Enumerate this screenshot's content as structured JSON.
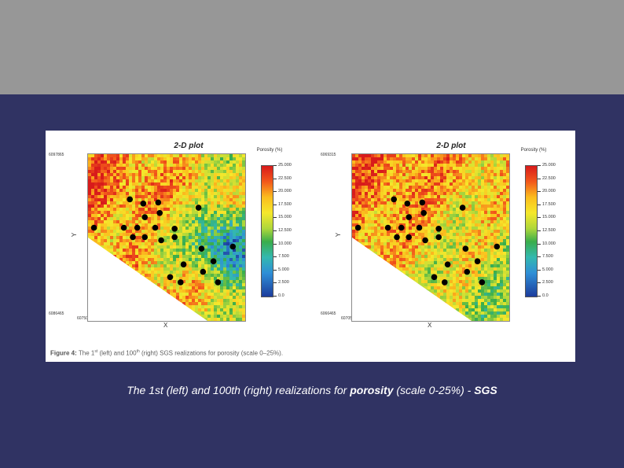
{
  "slide": {
    "caption_prefix": "The 1st (left) and 100th (right) realizations for ",
    "caption_bold_1": "porosity",
    "caption_mid": " (scale 0-25%) - ",
    "caption_bold_2": "SGS"
  },
  "figure": {
    "caption_label": "Figure 4:",
    "caption_t1": " The 1",
    "caption_sup1": "st",
    "caption_t2": " (left) and 100",
    "caption_sup2": "th",
    "caption_t3": " (right) SGS realizations for porosity (scale 0–25%)."
  },
  "colors": {
    "slide_background": "#303363",
    "top_band": "#979797",
    "well_marker": "#000000",
    "scale_high": "#d81b1b",
    "scale_mid": "#f5e82b",
    "scale_low": "#1c3c9c"
  },
  "chart_data": [
    {
      "type": "heatmap",
      "title": "2-D plot",
      "xlabel": "X",
      "ylabel": "Y",
      "corner_labels": {
        "y_max": "6097865",
        "y_min": "6086465",
        "x_min": "607505",
        "x_max": "6070545"
      },
      "legend_title": "Porosity (%)",
      "scale_min": 0,
      "scale_max": 25,
      "scale_ticks": [
        "25.000",
        "22.500",
        "20.000",
        "17.500",
        "15.000",
        "12.500",
        "10.000",
        "7.500",
        "5.000",
        "2.500",
        "0.0"
      ],
      "color_map": [
        "#d81b1b",
        "#f2571b",
        "#fbbd1e",
        "#f5e82b",
        "#aed73b",
        "#39ad4b",
        "#33b8b0",
        "#2f8fd6",
        "#1c3c9c"
      ],
      "low_zone": "east-center",
      "high_zone": "west",
      "wells": [
        {
          "x": 0.28,
          "y": 0.43
        },
        {
          "x": 0.37,
          "y": 0.47
        },
        {
          "x": 0.47,
          "y": 0.46
        },
        {
          "x": 0.38,
          "y": 0.6
        },
        {
          "x": 0.48,
          "y": 0.56
        },
        {
          "x": 0.04,
          "y": 0.7
        },
        {
          "x": 0.24,
          "y": 0.7
        },
        {
          "x": 0.33,
          "y": 0.7
        },
        {
          "x": 0.45,
          "y": 0.7
        },
        {
          "x": 0.58,
          "y": 0.71
        },
        {
          "x": 0.74,
          "y": 0.51
        },
        {
          "x": 0.3,
          "y": 0.79
        },
        {
          "x": 0.38,
          "y": 0.79
        },
        {
          "x": 0.49,
          "y": 0.82
        },
        {
          "x": 0.58,
          "y": 0.79
        },
        {
          "x": 0.76,
          "y": 0.9
        },
        {
          "x": 0.64,
          "y": 1.05
        },
        {
          "x": 0.97,
          "y": 0.88
        },
        {
          "x": 0.84,
          "y": 1.02
        },
        {
          "x": 0.77,
          "y": 1.12
        },
        {
          "x": 0.87,
          "y": 1.22
        },
        {
          "x": 0.55,
          "y": 1.17
        },
        {
          "x": 0.62,
          "y": 1.22
        }
      ]
    },
    {
      "type": "heatmap",
      "title": "2-D plot",
      "xlabel": "X",
      "ylabel": "Y",
      "corner_labels": {
        "y_max": "6069315",
        "y_min": "6066465",
        "x_min": "6070525",
        "x_max": "6345315"
      },
      "legend_title": "Porosity (%)",
      "scale_min": 0,
      "scale_max": 25,
      "scale_ticks": [
        "25.000",
        "22.500",
        "20.000",
        "17.500",
        "15.000",
        "12.500",
        "10.000",
        "7.500",
        "5.000",
        "2.500",
        "0.0"
      ],
      "color_map": [
        "#d81b1b",
        "#f2571b",
        "#fbbd1e",
        "#f5e82b",
        "#aed73b",
        "#39ad4b",
        "#33b8b0",
        "#2f8fd6",
        "#1c3c9c"
      ],
      "low_zone": "none",
      "high_zone": "north-west",
      "wells": [
        {
          "x": 0.28,
          "y": 0.43
        },
        {
          "x": 0.37,
          "y": 0.47
        },
        {
          "x": 0.47,
          "y": 0.46
        },
        {
          "x": 0.38,
          "y": 0.6
        },
        {
          "x": 0.48,
          "y": 0.56
        },
        {
          "x": 0.04,
          "y": 0.7
        },
        {
          "x": 0.24,
          "y": 0.7
        },
        {
          "x": 0.33,
          "y": 0.7
        },
        {
          "x": 0.45,
          "y": 0.7
        },
        {
          "x": 0.58,
          "y": 0.71
        },
        {
          "x": 0.74,
          "y": 0.51
        },
        {
          "x": 0.3,
          "y": 0.79
        },
        {
          "x": 0.38,
          "y": 0.79
        },
        {
          "x": 0.49,
          "y": 0.82
        },
        {
          "x": 0.58,
          "y": 0.79
        },
        {
          "x": 0.76,
          "y": 0.9
        },
        {
          "x": 0.64,
          "y": 1.05
        },
        {
          "x": 0.97,
          "y": 0.88
        },
        {
          "x": 0.84,
          "y": 1.02
        },
        {
          "x": 0.77,
          "y": 1.12
        },
        {
          "x": 0.87,
          "y": 1.22
        },
        {
          "x": 0.55,
          "y": 1.17
        },
        {
          "x": 0.62,
          "y": 1.22
        }
      ]
    }
  ]
}
